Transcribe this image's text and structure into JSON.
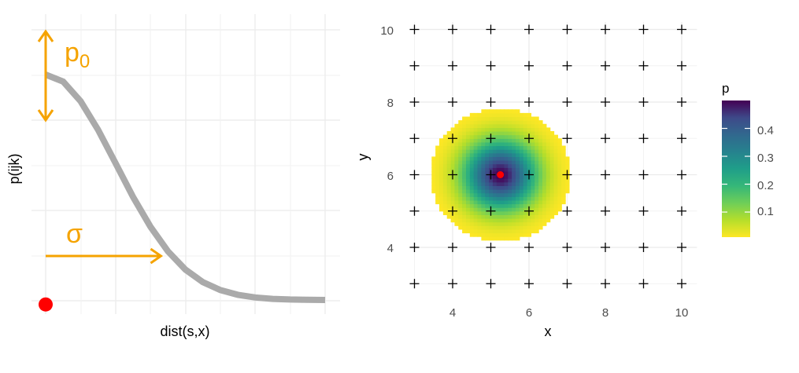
{
  "chart_data": [
    {
      "type": "line",
      "xlabel": "dist(s,x)",
      "ylabel": "p(ijk)",
      "x_range": [
        0,
        4
      ],
      "y_range": [
        0,
        1
      ],
      "series": [
        {
          "x": [
            0,
            0.25,
            0.5,
            0.75,
            1.0,
            1.25,
            1.5,
            1.75,
            2.0,
            2.25,
            2.5,
            2.75,
            3.0,
            3.25,
            3.5,
            3.75,
            4.0
          ],
          "y": [
            1.0,
            0.969,
            0.882,
            0.755,
            0.607,
            0.458,
            0.325,
            0.216,
            0.135,
            0.079,
            0.044,
            0.023,
            0.011,
            0.005,
            0.002,
            0.001,
            0.0
          ]
        }
      ],
      "annotations": {
        "p0_label": "p",
        "p0_subscript": "0",
        "sigma_label": "σ",
        "sigma_value": 1.65,
        "trap_point": [
          0,
          -0.02
        ]
      },
      "colors": {
        "curve": "#aaaaaa",
        "annotation": "#f5a300",
        "point": "#ff0000"
      },
      "grid": true
    },
    {
      "type": "heatmap",
      "xlabel": "x",
      "ylabel": "y",
      "x_ticks": [
        "4",
        "6",
        "8",
        "10"
      ],
      "y_ticks": [
        "4",
        "6",
        "8",
        "10"
      ],
      "xlim": [
        3,
        10.4
      ],
      "ylim": [
        2.9,
        10.2
      ],
      "center": [
        5.25,
        6.0
      ],
      "p0": 0.5,
      "sigma": 0.65,
      "cutoff": 0.01,
      "traps_x": [
        3,
        4,
        5,
        6,
        7,
        8,
        9,
        10
      ],
      "traps_y": [
        3,
        4,
        5,
        6,
        7,
        8,
        9,
        10
      ],
      "legend": {
        "title": "p",
        "ticks": [
          "0.1",
          "0.2",
          "0.3",
          "0.4"
        ],
        "tick_values": [
          0.1,
          0.2,
          0.3,
          0.4
        ],
        "range": [
          0.01,
          0.5
        ]
      },
      "colormap": "viridis",
      "colors": {
        "activity_center": "#ff0000",
        "trap": "#000000"
      },
      "grid": true
    }
  ]
}
